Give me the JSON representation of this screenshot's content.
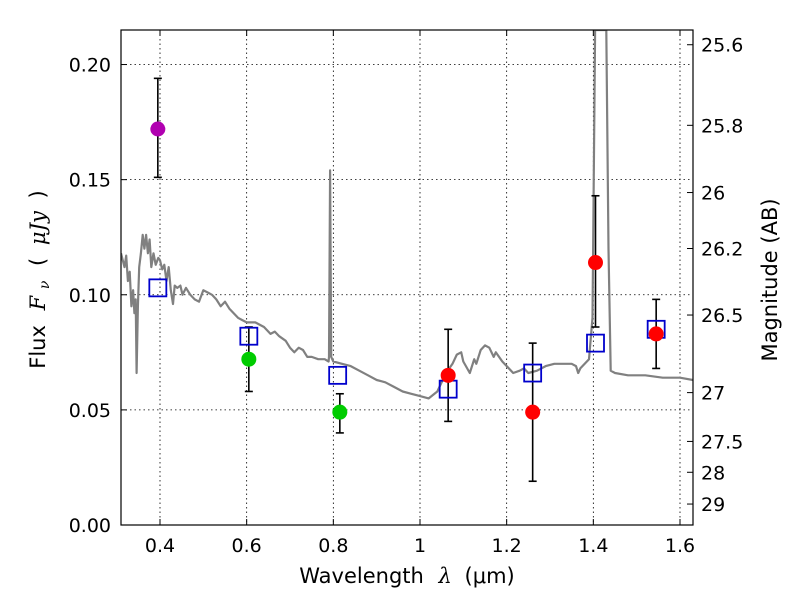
{
  "chart_data": {
    "type": "scatter",
    "title": "",
    "xlabel": {
      "text": "Wavelength",
      "symbol": "λ",
      "unit": "(μm)"
    },
    "ylabel": {
      "text": "Flux",
      "symbol": "F",
      "subscript": "ν",
      "open": "(",
      "unit": "μJy",
      "close": ")"
    },
    "ylabel_right": "Magnitude (AB)",
    "xlim": [
      0.31,
      1.63
    ],
    "ylim": [
      0.0,
      0.215
    ],
    "grid": true,
    "x_ticks": [
      0.4,
      0.6,
      0.8,
      1.0,
      1.2,
      1.4,
      1.6
    ],
    "x_tick_labels": [
      "0.4",
      "0.6",
      "0.8",
      "1",
      "1.2",
      "1.4",
      "1.6"
    ],
    "y_ticks": [
      0.0,
      0.05,
      0.1,
      0.15,
      0.2
    ],
    "y_tick_labels": [
      "0.00",
      "0.05",
      "0.10",
      "0.15",
      "0.20"
    ],
    "right_ticks": [
      {
        "label": "25.6",
        "flux": 0.2086
      },
      {
        "label": "25.8",
        "flux": 0.1736
      },
      {
        "label": "26",
        "flux": 0.1444
      },
      {
        "label": "26.2",
        "flux": 0.1201
      },
      {
        "label": "26.5",
        "flux": 0.0912
      },
      {
        "label": "27",
        "flux": 0.0575
      },
      {
        "label": "27.5",
        "flux": 0.0363
      },
      {
        "label": "28",
        "flux": 0.0229
      },
      {
        "label": "29",
        "flux": 0.0091
      }
    ],
    "series": [
      {
        "name": "observed_magenta",
        "marker": "circle",
        "color": "#b000b0",
        "points": [
          {
            "x": 0.395,
            "y": 0.172,
            "ylow": 0.151,
            "yhigh": 0.194
          }
        ]
      },
      {
        "name": "observed_green",
        "marker": "circle",
        "color": "#00cc00",
        "points": [
          {
            "x": 0.605,
            "y": 0.072,
            "ylow": 0.058,
            "yhigh": 0.086
          },
          {
            "x": 0.815,
            "y": 0.049,
            "ylow": 0.04,
            "yhigh": 0.057
          }
        ]
      },
      {
        "name": "observed_red",
        "marker": "circle",
        "color": "#ff0000",
        "points": [
          {
            "x": 1.065,
            "y": 0.065,
            "ylow": 0.045,
            "yhigh": 0.085
          },
          {
            "x": 1.26,
            "y": 0.049,
            "ylow": 0.019,
            "yhigh": 0.079
          },
          {
            "x": 1.405,
            "y": 0.114,
            "ylow": 0.086,
            "yhigh": 0.143
          },
          {
            "x": 1.545,
            "y": 0.083,
            "ylow": 0.068,
            "yhigh": 0.098
          }
        ]
      },
      {
        "name": "model_photometry",
        "marker": "square",
        "color": "#0000cc",
        "points": [
          {
            "x": 0.395,
            "y": 0.103
          },
          {
            "x": 0.605,
            "y": 0.082
          },
          {
            "x": 0.81,
            "y": 0.065
          },
          {
            "x": 1.065,
            "y": 0.059
          },
          {
            "x": 1.26,
            "y": 0.066
          },
          {
            "x": 1.405,
            "y": 0.079
          },
          {
            "x": 1.545,
            "y": 0.085
          }
        ]
      },
      {
        "name": "model_spectrum",
        "type": "line",
        "color": "#808080",
        "points": [
          [
            0.31,
            0.118
          ],
          [
            0.318,
            0.112
          ],
          [
            0.322,
            0.117
          ],
          [
            0.326,
            0.106
          ],
          [
            0.33,
            0.11
          ],
          [
            0.334,
            0.095
          ],
          [
            0.338,
            0.102
          ],
          [
            0.341,
            0.092
          ],
          [
            0.344,
            0.098
          ],
          [
            0.346,
            0.066
          ],
          [
            0.349,
            0.095
          ],
          [
            0.352,
            0.112
          ],
          [
            0.356,
            0.118
          ],
          [
            0.36,
            0.126
          ],
          [
            0.364,
            0.12
          ],
          [
            0.368,
            0.126
          ],
          [
            0.372,
            0.118
          ],
          [
            0.376,
            0.124
          ],
          [
            0.38,
            0.112
          ],
          [
            0.385,
            0.118
          ],
          [
            0.39,
            0.113
          ],
          [
            0.396,
            0.116
          ],
          [
            0.4,
            0.115
          ],
          [
            0.405,
            0.111
          ],
          [
            0.41,
            0.113
          ],
          [
            0.415,
            0.106
          ],
          [
            0.42,
            0.112
          ],
          [
            0.425,
            0.102
          ],
          [
            0.43,
            0.096
          ],
          [
            0.434,
            0.104
          ],
          [
            0.44,
            0.103
          ],
          [
            0.447,
            0.104
          ],
          [
            0.452,
            0.1
          ],
          [
            0.46,
            0.103
          ],
          [
            0.47,
            0.1
          ],
          [
            0.48,
            0.098
          ],
          [
            0.49,
            0.097
          ],
          [
            0.5,
            0.102
          ],
          [
            0.51,
            0.101
          ],
          [
            0.52,
            0.1
          ],
          [
            0.53,
            0.098
          ],
          [
            0.54,
            0.095
          ],
          [
            0.55,
            0.097
          ],
          [
            0.56,
            0.094
          ],
          [
            0.57,
            0.092
          ],
          [
            0.58,
            0.09
          ],
          [
            0.59,
            0.089
          ],
          [
            0.6,
            0.088
          ],
          [
            0.62,
            0.088
          ],
          [
            0.64,
            0.086
          ],
          [
            0.655,
            0.083
          ],
          [
            0.665,
            0.084
          ],
          [
            0.675,
            0.082
          ],
          [
            0.69,
            0.08
          ],
          [
            0.7,
            0.077
          ],
          [
            0.71,
            0.075
          ],
          [
            0.72,
            0.077
          ],
          [
            0.73,
            0.076
          ],
          [
            0.74,
            0.073
          ],
          [
            0.75,
            0.073
          ],
          [
            0.765,
            0.072
          ],
          [
            0.78,
            0.072
          ],
          [
            0.789,
            0.071
          ],
          [
            0.79,
            0.073
          ],
          [
            0.7925,
            0.154
          ],
          [
            0.795,
            0.073
          ],
          [
            0.8,
            0.071
          ],
          [
            0.82,
            0.07
          ],
          [
            0.84,
            0.069
          ],
          [
            0.86,
            0.067
          ],
          [
            0.88,
            0.065
          ],
          [
            0.9,
            0.063
          ],
          [
            0.92,
            0.062
          ],
          [
            0.94,
            0.06
          ],
          [
            0.96,
            0.058
          ],
          [
            0.98,
            0.057
          ],
          [
            1.0,
            0.056
          ],
          [
            1.02,
            0.055
          ],
          [
            1.04,
            0.058
          ],
          [
            1.06,
            0.066
          ],
          [
            1.075,
            0.07
          ],
          [
            1.085,
            0.074
          ],
          [
            1.095,
            0.075
          ],
          [
            1.1,
            0.071
          ],
          [
            1.115,
            0.066
          ],
          [
            1.125,
            0.072
          ],
          [
            1.13,
            0.07
          ],
          [
            1.14,
            0.076
          ],
          [
            1.15,
            0.078
          ],
          [
            1.16,
            0.077
          ],
          [
            1.17,
            0.073
          ],
          [
            1.175,
            0.075
          ],
          [
            1.19,
            0.071
          ],
          [
            1.2,
            0.069
          ],
          [
            1.215,
            0.066
          ],
          [
            1.23,
            0.067
          ],
          [
            1.24,
            0.068
          ],
          [
            1.25,
            0.066
          ],
          [
            1.27,
            0.067
          ],
          [
            1.29,
            0.069
          ],
          [
            1.31,
            0.07
          ],
          [
            1.33,
            0.07
          ],
          [
            1.35,
            0.07
          ],
          [
            1.36,
            0.069
          ],
          [
            1.365,
            0.066
          ],
          [
            1.37,
            0.068
          ],
          [
            1.38,
            0.07
          ],
          [
            1.39,
            0.072
          ],
          [
            1.398,
            0.09
          ],
          [
            1.404,
            0.215
          ],
          [
            1.425,
            0.215
          ],
          [
            1.43,
            0.215
          ],
          [
            1.435,
            0.12
          ],
          [
            1.44,
            0.067
          ],
          [
            1.45,
            0.066
          ],
          [
            1.48,
            0.065
          ],
          [
            1.52,
            0.065
          ],
          [
            1.56,
            0.064
          ],
          [
            1.6,
            0.064
          ],
          [
            1.63,
            0.063
          ]
        ]
      }
    ]
  }
}
